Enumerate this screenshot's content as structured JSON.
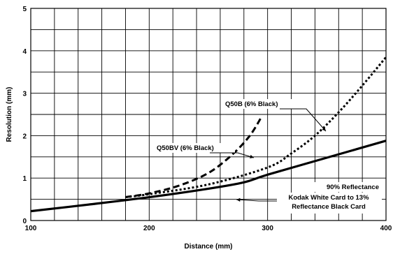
{
  "chart_data": {
    "type": "line",
    "title": "",
    "xlabel": "Distance (mm)",
    "ylabel": "Resolution (mm)",
    "xlim": [
      100,
      400
    ],
    "ylim": [
      0,
      5
    ],
    "x_ticks": [
      "100",
      "200",
      "300",
      "400"
    ],
    "y_ticks": [
      "0",
      "1",
      "2",
      "3",
      "4",
      "5"
    ],
    "grid": true,
    "legend": "none",
    "series": [
      {
        "style": "solid",
        "x": [
          100,
          150,
          200,
          250,
          280,
          300,
          350,
          400
        ],
        "y": [
          0.22,
          0.38,
          0.55,
          0.75,
          0.9,
          1.08,
          1.48,
          1.88
        ]
      },
      {
        "style": "dotted",
        "x": [
          180,
          200,
          250,
          300,
          320,
          340,
          360,
          380,
          400
        ],
        "y": [
          0.55,
          0.62,
          0.85,
          1.25,
          1.58,
          2.0,
          2.55,
          3.18,
          3.85
        ]
      },
      {
        "style": "dashed",
        "x": [
          180,
          200,
          225,
          250,
          270,
          285,
          295
        ],
        "y": [
          0.55,
          0.64,
          0.82,
          1.12,
          1.55,
          2.0,
          2.45
        ]
      }
    ],
    "annotations": [
      {
        "lines": [
          "Q50B (6% Black)"
        ]
      },
      {
        "lines": [
          "Q50BV (6% Black)"
        ]
      },
      {
        "lines": [
          "90% Reflectance"
        ]
      },
      {
        "lines": [
          "Kodak White Card to 13%",
          "Reflectance Black Card"
        ]
      }
    ]
  }
}
